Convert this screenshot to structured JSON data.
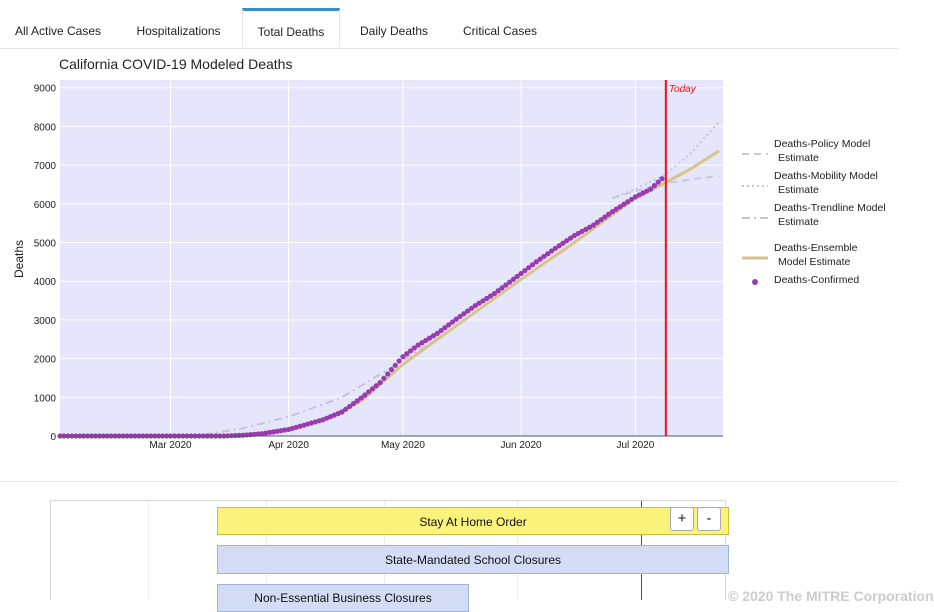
{
  "tabs": [
    {
      "label": "All Active Cases",
      "active": false
    },
    {
      "label": "Hospitalizations",
      "active": false
    },
    {
      "label": "Total Deaths",
      "active": true
    },
    {
      "label": "Daily Deaths",
      "active": false
    },
    {
      "label": "Critical Cases",
      "active": false
    }
  ],
  "chart_data": {
    "type": "line",
    "title": "California COVID-19 Modeled Deaths",
    "ylabel": "Deaths",
    "xlabel": "",
    "ylim": [
      0,
      9200
    ],
    "xlim": [
      "2020-02-01",
      "2020-07-24"
    ],
    "yticks": [
      0,
      1000,
      2000,
      3000,
      4000,
      5000,
      6000,
      7000,
      8000,
      9000
    ],
    "xticks": [
      {
        "date": "2020-03-01",
        "label": "Mar 2020"
      },
      {
        "date": "2020-04-01",
        "label": "Apr 2020"
      },
      {
        "date": "2020-05-01",
        "label": "May 2020"
      },
      {
        "date": "2020-06-01",
        "label": "Jun 2020"
      },
      {
        "date": "2020-07-01",
        "label": "Jul 2020"
      }
    ],
    "today": {
      "date": "2020-07-09",
      "label": "Today",
      "color": "#ee1111"
    },
    "plot_bg": "#e5e5fc",
    "series": [
      {
        "name": "Deaths-Policy Model Estimate",
        "style": "dash",
        "color": "#c9c9d9",
        "points": [
          [
            "2020-06-25",
            6150
          ],
          [
            "2020-07-01",
            6330
          ],
          [
            "2020-07-09",
            6530
          ],
          [
            "2020-07-16",
            6640
          ],
          [
            "2020-07-23",
            6720
          ]
        ]
      },
      {
        "name": "Deaths-Mobility Model Estimate",
        "style": "dot",
        "color": "#c6c2e2",
        "points": [
          [
            "2020-06-25",
            6150
          ],
          [
            "2020-07-01",
            6380
          ],
          [
            "2020-07-09",
            6760
          ],
          [
            "2020-07-16",
            7350
          ],
          [
            "2020-07-23",
            8130
          ]
        ]
      },
      {
        "name": "Deaths-Trendline Model Estimate",
        "style": "dashdot",
        "color": "#c4c4d8",
        "points": [
          [
            "2020-02-01",
            0
          ],
          [
            "2020-03-01",
            0
          ],
          [
            "2020-03-10",
            40
          ],
          [
            "2020-03-20",
            200
          ],
          [
            "2020-04-01",
            500
          ],
          [
            "2020-04-15",
            1000
          ],
          [
            "2020-05-01",
            1950
          ],
          [
            "2020-05-15",
            2850
          ],
          [
            "2020-06-01",
            4050
          ],
          [
            "2020-06-15",
            5000
          ],
          [
            "2020-07-01",
            6150
          ],
          [
            "2020-07-09",
            6550
          ]
        ]
      },
      {
        "name": "Deaths-Ensemble Model Estimate",
        "style": "solid",
        "color": "#d8c38a",
        "points": [
          [
            "2020-02-01",
            0
          ],
          [
            "2020-03-15",
            0
          ],
          [
            "2020-03-25",
            70
          ],
          [
            "2020-04-01",
            160
          ],
          [
            "2020-04-10",
            420
          ],
          [
            "2020-04-20",
            900
          ],
          [
            "2020-05-01",
            1850
          ],
          [
            "2020-05-15",
            2850
          ],
          [
            "2020-06-01",
            4050
          ],
          [
            "2020-06-15",
            5000
          ],
          [
            "2020-07-01",
            6150
          ],
          [
            "2020-07-09",
            6550
          ],
          [
            "2020-07-16",
            6930
          ],
          [
            "2020-07-23",
            7370
          ]
        ]
      },
      {
        "name": "Deaths-Confirmed",
        "style": "markers",
        "color": "#9b3bb0",
        "points": [
          [
            "2020-02-01",
            0
          ],
          [
            "2020-03-01",
            0
          ],
          [
            "2020-03-15",
            0
          ],
          [
            "2020-03-20",
            20
          ],
          [
            "2020-03-25",
            60
          ],
          [
            "2020-04-01",
            170
          ],
          [
            "2020-04-05",
            280
          ],
          [
            "2020-04-10",
            420
          ],
          [
            "2020-04-15",
            620
          ],
          [
            "2020-04-20",
            980
          ],
          [
            "2020-04-25",
            1380
          ],
          [
            "2020-05-01",
            2050
          ],
          [
            "2020-05-05",
            2350
          ],
          [
            "2020-05-10",
            2650
          ],
          [
            "2020-05-15",
            3020
          ],
          [
            "2020-05-20",
            3370
          ],
          [
            "2020-05-25",
            3680
          ],
          [
            "2020-06-01",
            4200
          ],
          [
            "2020-06-05",
            4500
          ],
          [
            "2020-06-10",
            4850
          ],
          [
            "2020-06-15",
            5180
          ],
          [
            "2020-06-20",
            5450
          ],
          [
            "2020-06-25",
            5800
          ],
          [
            "2020-07-01",
            6180
          ],
          [
            "2020-07-05",
            6380
          ],
          [
            "2020-07-08",
            6650
          ]
        ]
      }
    ]
  },
  "timeline": {
    "zoom_in_label": "+",
    "zoom_out_label": "-",
    "bars": [
      {
        "label": "Stay At Home Order",
        "color": "yellow"
      },
      {
        "label": "State-Mandated School Closures",
        "color": "blue"
      },
      {
        "label": "Non-Essential Business Closures",
        "color": "blue"
      }
    ]
  },
  "footer": {
    "text": "© 2020 The MITRE Corporation"
  }
}
